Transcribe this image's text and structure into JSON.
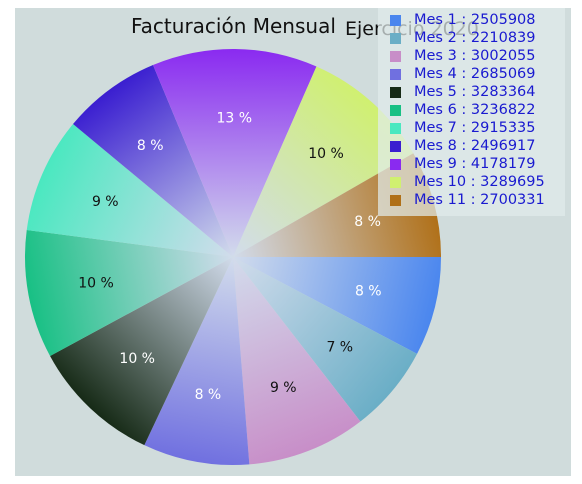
{
  "chart_data": {
    "type": "pie",
    "title": "Facturación Mensual",
    "subtitle": "Ejercicio 2020",
    "legend_position": "top-right",
    "slices": [
      {
        "label": "Mes 1",
        "value": 2505908,
        "percent_label": "8 %",
        "color": "#4a86ee",
        "text_color": "#ffffff"
      },
      {
        "label": "Mes 2",
        "value": 2210839,
        "percent_label": "7 %",
        "color": "#6aaec6",
        "text_color": "#111111"
      },
      {
        "label": "Mes 3",
        "value": 3002055,
        "percent_label": "9 %",
        "color": "#c88ec8",
        "text_color": "#111111"
      },
      {
        "label": "Mes 4",
        "value": 2685069,
        "percent_label": "8 %",
        "color": "#7070e0",
        "text_color": "#ffffff"
      },
      {
        "label": "Mes 5",
        "value": 3283364,
        "percent_label": "10 %",
        "color": "#162a16",
        "text_color": "#ffffff"
      },
      {
        "label": "Mes 6",
        "value": 3236822,
        "percent_label": "10 %",
        "color": "#18c084",
        "text_color": "#111111"
      },
      {
        "label": "Mes 7",
        "value": 2915335,
        "percent_label": "9 %",
        "color": "#4ae8c0",
        "text_color": "#111111"
      },
      {
        "label": "Mes 8",
        "value": 2496917,
        "percent_label": "8 %",
        "color": "#3a1ed0",
        "text_color": "#ffffff"
      },
      {
        "label": "Mes 9",
        "value": 4178179,
        "percent_label": "13 %",
        "color": "#8a2af0",
        "text_color": "#ffffff"
      },
      {
        "label": "Mes 10",
        "value": 3289695,
        "percent_label": "10 %",
        "color": "#d0f070",
        "text_color": "#111111"
      },
      {
        "label": "Mes 11",
        "value": 2700331,
        "percent_label": "8 %",
        "color": "#b07018",
        "text_color": "#ffffff"
      }
    ]
  }
}
